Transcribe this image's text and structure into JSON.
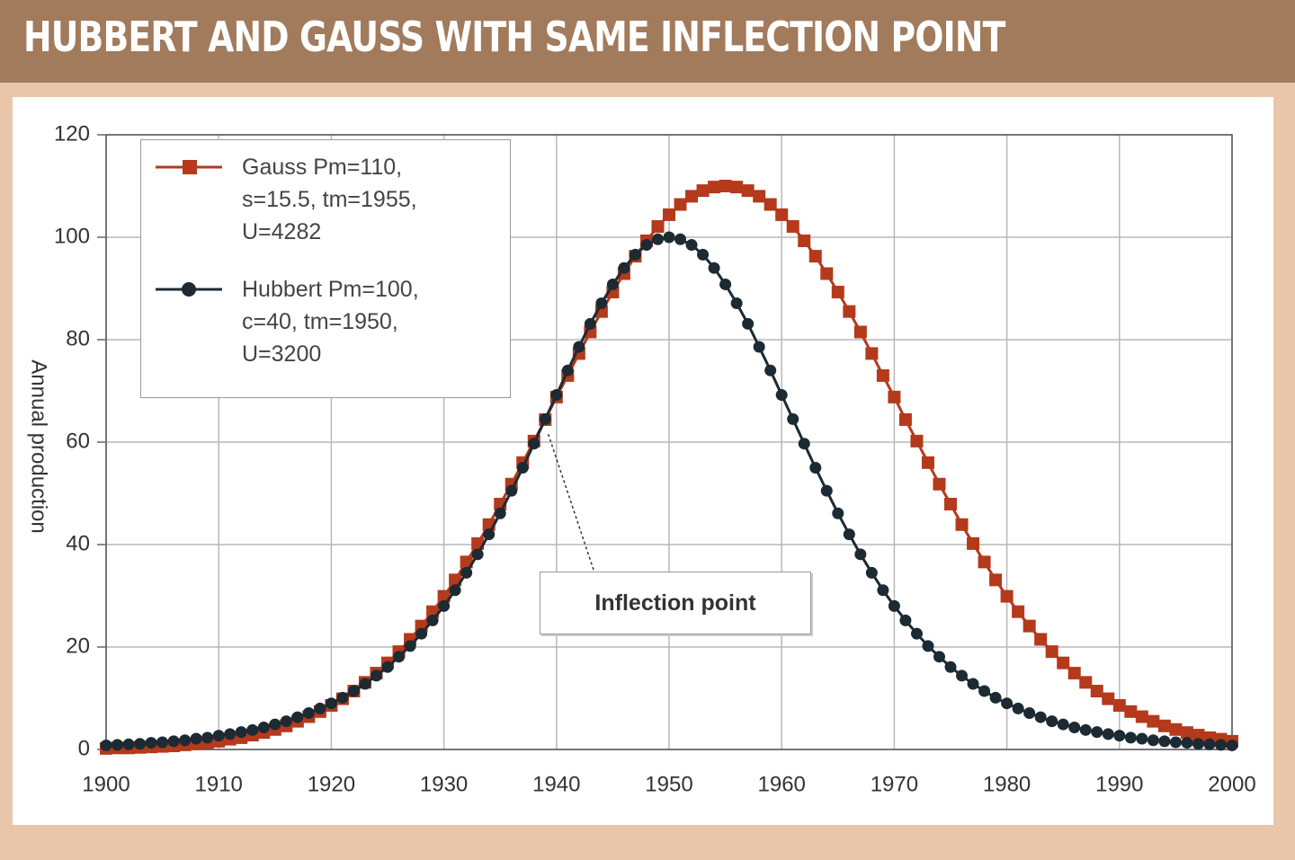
{
  "chart_data": {
    "type": "line",
    "title": "HUBBERT AND GAUSS WITH SAME INFLECTION POINT",
    "y_label": "Annual production",
    "annotation": "Inflection point",
    "x": [
      1900,
      1901,
      1902,
      1903,
      1904,
      1905,
      1906,
      1907,
      1908,
      1909,
      1910,
      1911,
      1912,
      1913,
      1914,
      1915,
      1916,
      1917,
      1918,
      1919,
      1920,
      1921,
      1922,
      1923,
      1924,
      1925,
      1926,
      1927,
      1928,
      1929,
      1930,
      1931,
      1932,
      1933,
      1934,
      1935,
      1936,
      1937,
      1938,
      1939,
      1940,
      1941,
      1942,
      1943,
      1944,
      1945,
      1946,
      1947,
      1948,
      1949,
      1950,
      1951,
      1952,
      1953,
      1954,
      1955,
      1956,
      1957,
      1958,
      1959,
      1960,
      1961,
      1962,
      1963,
      1964,
      1965,
      1966,
      1967,
      1968,
      1969,
      1970,
      1971,
      1972,
      1973,
      1974,
      1975,
      1976,
      1977,
      1978,
      1979,
      1980,
      1981,
      1982,
      1983,
      1984,
      1985,
      1986,
      1987,
      1988,
      1989,
      1990,
      1991,
      1992,
      1993,
      1994,
      1995,
      1996,
      1997,
      1998,
      1999,
      2000
    ],
    "series": [
      {
        "name": "Gauss Pm=110, s=15.5, tm=1955, U=4282",
        "color": "#b5391b",
        "marker": "square",
        "values": [
          0.2,
          0.3,
          0.3,
          0.4,
          0.5,
          0.6,
          0.7,
          0.9,
          1.1,
          1.3,
          1.6,
          2.0,
          2.3,
          2.8,
          3.3,
          3.9,
          4.6,
          5.5,
          6.4,
          7.4,
          8.6,
          9.9,
          11.4,
          13.1,
          14.9,
          16.9,
          19.1,
          21.5,
          24.1,
          26.9,
          29.9,
          33.1,
          36.6,
          40.2,
          43.9,
          47.9,
          51.8,
          56.0,
          60.2,
          64.4,
          68.8,
          73.0,
          77.3,
          81.5,
          85.5,
          89.3,
          92.9,
          96.3,
          99.3,
          102.1,
          104.4,
          106.4,
          108.0,
          109.1,
          109.8,
          110,
          109.8,
          109.1,
          108.0,
          106.4,
          104.4,
          102.1,
          99.3,
          96.3,
          92.9,
          89.3,
          85.5,
          81.5,
          77.3,
          73.0,
          68.8,
          64.4,
          60.2,
          56.0,
          51.8,
          47.9,
          43.9,
          40.2,
          36.6,
          33.1,
          29.9,
          26.9,
          24.1,
          21.5,
          19.1,
          16.9,
          14.9,
          13.1,
          11.4,
          9.9,
          8.6,
          7.4,
          6.4,
          5.5,
          4.6,
          3.9,
          3.3,
          2.8,
          2.3,
          2.0,
          1.6
        ]
      },
      {
        "name": "Hubbert Pm=100, c=40, tm=1950, U=3200",
        "color": "#1c2a33",
        "marker": "circle",
        "values": [
          0.8,
          0.9,
          1.0,
          1.1,
          1.3,
          1.4,
          1.6,
          1.8,
          2.1,
          2.3,
          2.7,
          3.0,
          3.4,
          3.8,
          4.3,
          4.9,
          5.5,
          6.3,
          7.1,
          8.0,
          9.0,
          10.1,
          11.4,
          12.8,
          14.4,
          16.1,
          18.1,
          20.2,
          22.6,
          25.2,
          28.0,
          31.1,
          34.5,
          38.1,
          42.0,
          46.1,
          50.5,
          55.0,
          59.7,
          64.5,
          69.2,
          74.0,
          78.6,
          83.1,
          87.1,
          90.8,
          94.0,
          96.6,
          98.5,
          99.6,
          100,
          99.6,
          98.5,
          96.6,
          94.0,
          90.8,
          87.1,
          83.1,
          78.6,
          74.0,
          69.2,
          64.5,
          59.7,
          55.0,
          50.5,
          46.1,
          42.0,
          38.1,
          34.5,
          31.1,
          28.0,
          25.2,
          22.6,
          20.2,
          18.1,
          16.1,
          14.4,
          12.8,
          11.4,
          10.1,
          9.0,
          8.0,
          7.1,
          6.3,
          5.5,
          4.9,
          4.3,
          3.8,
          3.4,
          3.0,
          2.7,
          2.3,
          2.1,
          1.8,
          1.6,
          1.4,
          1.3,
          1.1,
          1.0,
          0.9,
          0.8
        ]
      }
    ],
    "xlim": [
      1900,
      2000
    ],
    "xticks": [
      1900,
      1910,
      1920,
      1930,
      1940,
      1950,
      1960,
      1970,
      1980,
      1990,
      2000
    ],
    "ylim": [
      0,
      120
    ],
    "yticks": [
      0,
      20,
      40,
      60,
      80,
      100,
      120
    ],
    "grid": true
  }
}
